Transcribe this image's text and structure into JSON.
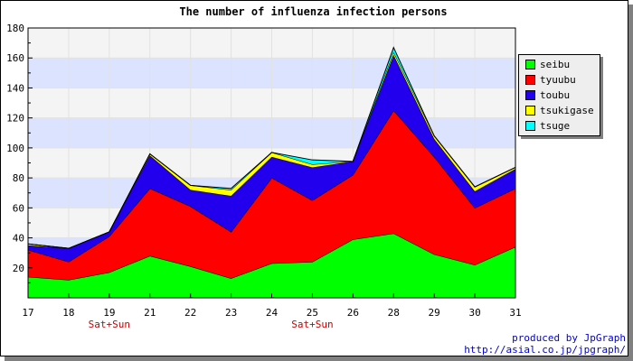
{
  "chart_data": {
    "type": "area",
    "stacked": true,
    "title": "The number of influenza infection persons",
    "categories": [
      "17",
      "18",
      "19",
      "21",
      "22",
      "23",
      "24",
      "25",
      "26",
      "28",
      "29",
      "30",
      "31"
    ],
    "secondary_x_labels": {
      "19": "Sat+Sun",
      "25": "Sat+Sun"
    },
    "ylim": [
      0,
      180
    ],
    "yticks": [
      "20",
      "40",
      "60",
      "80",
      "100",
      "120",
      "140",
      "160",
      "180"
    ],
    "grid": true,
    "legend_position": "right",
    "series": [
      {
        "name": "seibu",
        "color": "#00ff00",
        "values": [
          14,
          12,
          17,
          28,
          21,
          13,
          23,
          24,
          39,
          43,
          29,
          22,
          34
        ]
      },
      {
        "name": "tyuubu",
        "color": "#ff0000",
        "values": [
          18,
          12,
          24,
          45,
          40,
          31,
          57,
          41,
          43,
          82,
          65,
          38,
          39
        ]
      },
      {
        "name": "toubu",
        "color": "#2200ee",
        "values": [
          3,
          9,
          3,
          22,
          11,
          24,
          14,
          22,
          9,
          37,
          12,
          11,
          13
        ]
      },
      {
        "name": "tsukigase",
        "color": "#ffff00",
        "values": [
          1,
          0,
          0,
          1,
          3,
          4,
          3,
          2,
          0,
          2,
          2,
          3,
          1
        ]
      },
      {
        "name": "tsuge",
        "color": "#00ffff",
        "values": [
          0,
          0,
          0,
          0,
          0,
          1,
          0,
          3,
          0,
          3,
          0,
          0,
          0
        ]
      }
    ]
  },
  "credits": {
    "line1": "produced by JpGraph",
    "line2": "http://asial.co.jp/jpgraph/"
  }
}
